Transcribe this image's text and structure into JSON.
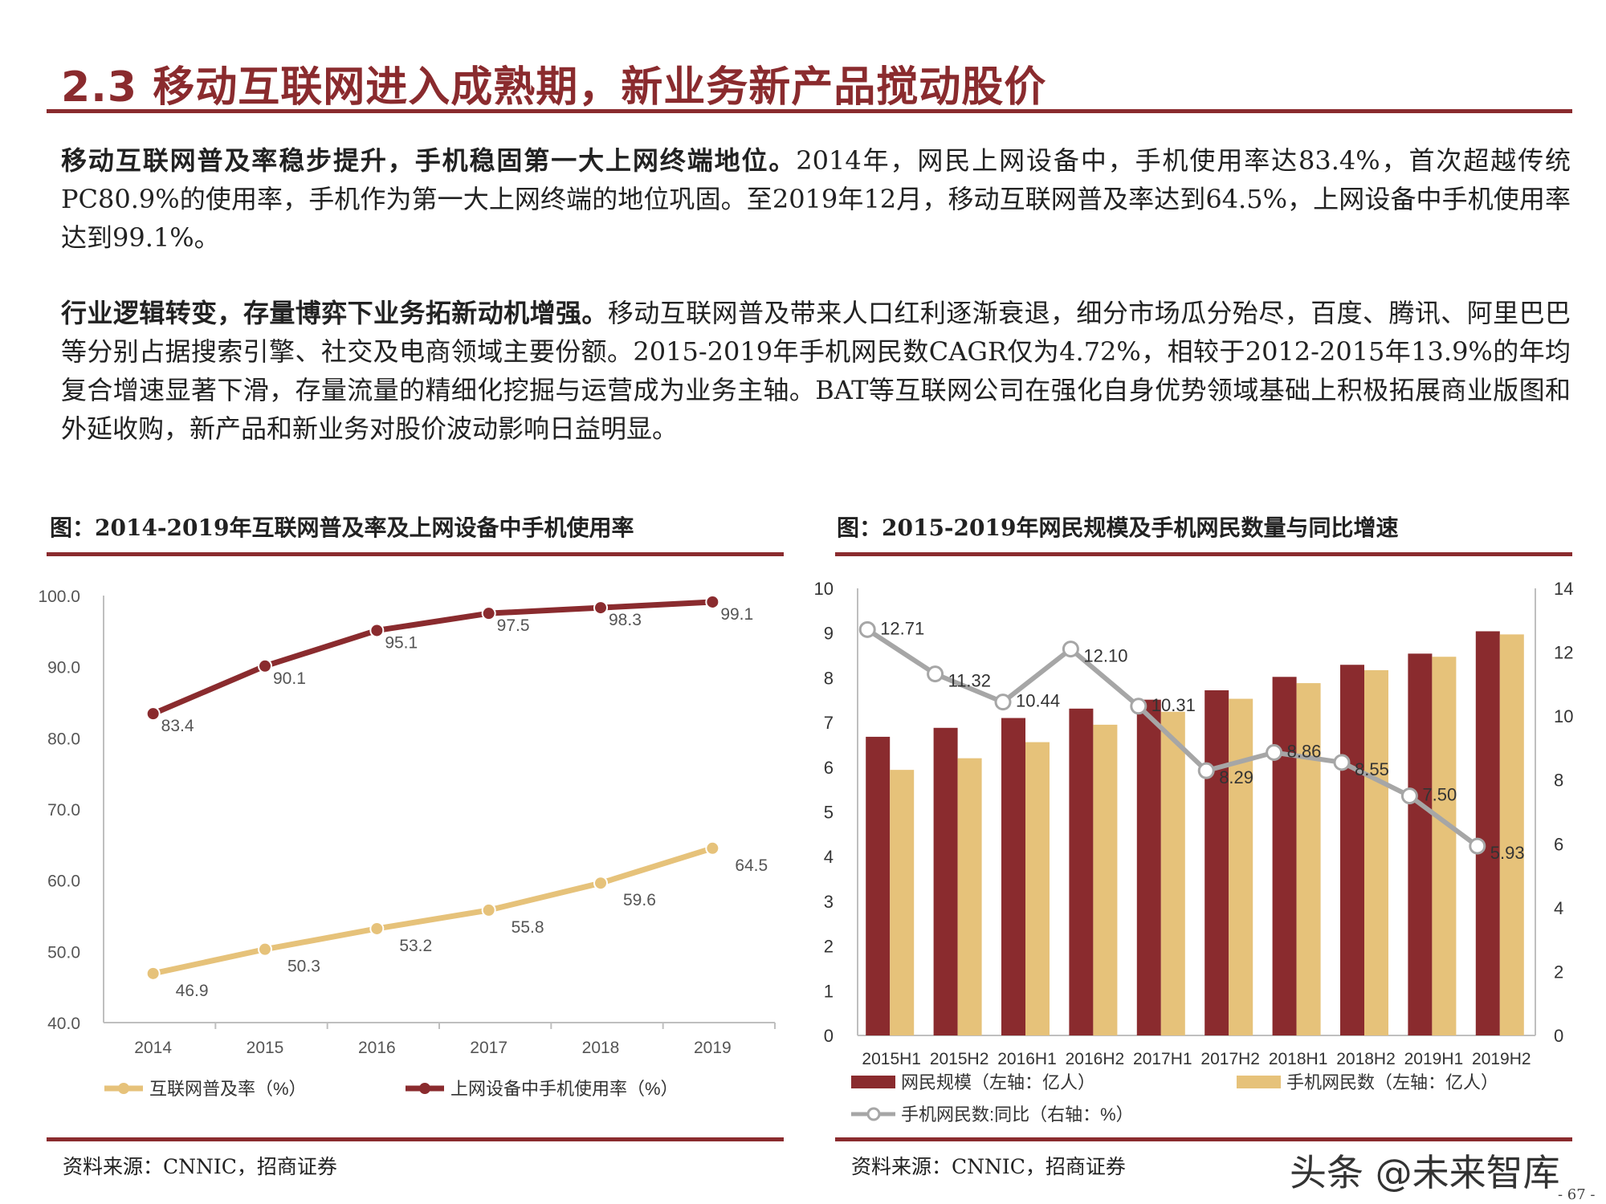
{
  "title": "2.3 移动互联网进入成熟期，新业务新产品搅动股价",
  "para1": {
    "bold": "移动互联网普及率稳步提升，手机稳固第一大上网终端地位。",
    "text": "2014年，网民上网设备中，手机使用率达83.4%，首次超越传统PC80.9%的使用率，手机作为第一大上网终端的地位巩固。至2019年12月，移动互联网普及率达到64.5%，上网设备中手机使用率达到99.1%。"
  },
  "para2": {
    "bold": "行业逻辑转变，存量博弈下业务拓新动机增强。",
    "text": "移动互联网普及带来人口红利逐渐衰退，细分市场瓜分殆尽，百度、腾讯、阿里巴巴等分别占据搜索引擎、社交及电商领域主要份额。2015-2019年手机网民数CAGR仅为4.72%，相较于2012-2015年13.9%的年均复合增速显著下滑，存量流量的精细化挖掘与运营成为业务主轴。BAT等互联网公司在强化自身优势领域基础上积极拓展商业版图和外延收购，新产品和新业务对股价波动影响日益明显。"
  },
  "left_chart_title": "图：2014-2019年互联网普及率及上网设备中手机使用率",
  "right_chart_title": "图：2015-2019年网民规模及手机网民数量与同比增速",
  "source_left": "资料来源：CNNIC，招商证券",
  "source_right": "资料来源：CNNIC，招商证券",
  "watermark": "头条 @未来智库",
  "page_number": "- 67 -",
  "colors": {
    "accent": "#8a2b2e",
    "gold": "#e6c27a",
    "gray": "#a6a6a6"
  },
  "chart_data": [
    {
      "type": "line",
      "categories": [
        "2014",
        "2015",
        "2016",
        "2017",
        "2018",
        "2019"
      ],
      "ylim": [
        40,
        100
      ],
      "yticks": [
        "40.0",
        "50.0",
        "60.0",
        "70.0",
        "80.0",
        "90.0",
        "100.0"
      ],
      "legend_placement": "bottom",
      "series": [
        {
          "name": "互联网普及率（%）",
          "color": "#e6c27a",
          "values": [
            46.9,
            50.3,
            53.2,
            55.8,
            59.6,
            64.5
          ],
          "labels": [
            "46.9",
            "50.3",
            "53.2",
            "55.8",
            "59.6",
            "64.5"
          ]
        },
        {
          "name": "上网设备中手机使用率（%）",
          "color": "#8a2b2e",
          "values": [
            83.4,
            90.1,
            95.1,
            97.5,
            98.3,
            99.1
          ],
          "labels": [
            "83.4",
            "90.1",
            "95.1",
            "97.5",
            "98.3",
            "99.1"
          ]
        }
      ]
    },
    {
      "type": "bar+line",
      "categories": [
        "2015H1",
        "2015H2",
        "2016H1",
        "2016H2",
        "2017H1",
        "2017H2",
        "2018H1",
        "2018H2",
        "2019H1",
        "2019H2"
      ],
      "ylim_left": [
        0,
        10
      ],
      "ylim_right": [
        0,
        14
      ],
      "yticks_left": [
        "0",
        "1",
        "2",
        "3",
        "4",
        "5",
        "6",
        "7",
        "8",
        "9",
        "10"
      ],
      "yticks_right": [
        "0",
        "2",
        "4",
        "6",
        "8",
        "10",
        "12",
        "14"
      ],
      "legend_placement": "bottom",
      "series": [
        {
          "name": "网民规模（左轴：亿人）",
          "type": "bar",
          "color": "#8a2b2e",
          "values": [
            6.68,
            6.88,
            7.1,
            7.31,
            7.51,
            7.72,
            8.02,
            8.29,
            8.54,
            9.04
          ]
        },
        {
          "name": "手机网民数（左轴：亿人）",
          "type": "bar",
          "color": "#e6c27a",
          "values": [
            5.94,
            6.2,
            6.56,
            6.95,
            7.24,
            7.53,
            7.88,
            8.17,
            8.47,
            8.97
          ]
        },
        {
          "name": "手机网民数:同比（右轴：%）",
          "type": "line",
          "axis": "right",
          "color": "#a6a6a6",
          "values": [
            12.71,
            11.32,
            10.44,
            12.1,
            10.31,
            8.29,
            8.86,
            8.55,
            7.5,
            5.93
          ],
          "labels": [
            "12.71",
            "11.32",
            "10.44",
            "12.10",
            "10.31",
            "8.29",
            "8.86",
            "8.55",
            "7.50",
            "5.93"
          ]
        }
      ]
    }
  ]
}
